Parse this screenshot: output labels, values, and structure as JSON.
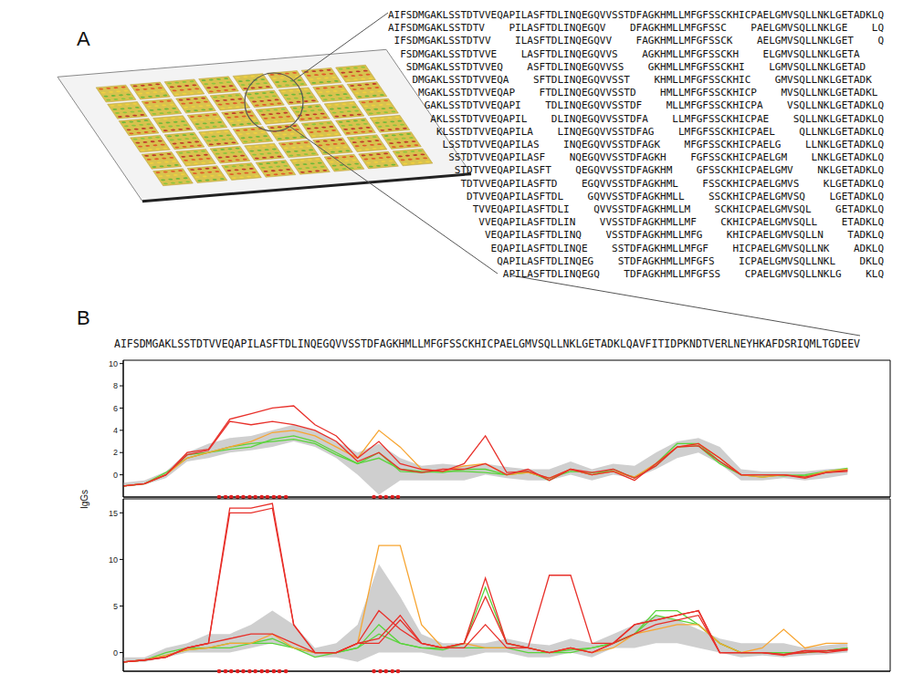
{
  "panel_a": {
    "label": "A",
    "rows": [
      [
        "AIFSDMGAKLSSTDTVVEQAPILASFTDLINQEGQVVSSTDFAGKHMLLMFGFSSCKHICPAELGMVSQLLNKLGETADKLQ"
      ],
      [
        "AIFSDMGAKLSSTDTV",
        "PILASFTDLINQEGQV",
        "DFAGKHMLLMFGFSSC",
        "PAELGMVSQLLNKLGE",
        "LQ"
      ],
      [
        "IFSDMGAKLSSTDTVV",
        "ILASFTDLINQEGQVV",
        "FAGKHMLLMFGFSSCK",
        "AELGMVSQLLNKLGET",
        "Q"
      ],
      [
        "FSDMGAKLSSTDTVVE",
        "LASFTDLINQEGQVVS",
        "AGKHMLLMFGFSSCKH",
        "ELGMVSQLLNKLGETA"
      ],
      [
        "SDMGAKLSSTDTVVEQ",
        "ASFTDLINQEGQVVSS",
        "GKHMLLMFGFSSCKHI",
        "LGMVSQLLNKLGETAD"
      ],
      [
        "DMGAKLSSTDTVVEQA",
        "SFTDLINQEGQVVSST",
        "KHMLLMFGFSSCKHIC",
        "GMVSQLLNKLGETADK"
      ],
      [
        "MGAKLSSTDTVVEQAP",
        "FTDLINQEGQVVSSTD",
        "HMLLMFGFSSCKHICP",
        "MVSQLLNKLGETADKL"
      ],
      [
        "GAKLSSTDTVVEQAPI",
        "TDLINQEGQVVSSTDF",
        "MLLMFGFSSCKHICPA",
        "VSQLLNKLGETADKLQ"
      ],
      [
        "AKLSSTDTVVEQAPIL",
        "DLINQEGQVVSSTDFA",
        "LLMFGFSSCKHICPAE",
        "SQLLNKLGETADKLQ"
      ],
      [
        "KLSSTDTVVEQAPILA",
        "LINQEGQVVSSTDFAG",
        "LMFGFSSCKHICPAEL",
        "QLLNKLGETADKLQ"
      ],
      [
        "LSSTDTVVEQAPILAS",
        "INQEGQVVSSTDFAGK",
        "MFGFSSCKHICPAELG",
        "LLNKLGETADKLQ"
      ],
      [
        "SSTDTVVEQAPILASF",
        "NQEGQVVSSTDFAGKH",
        "FGFSSCKHICPAELGM",
        "LNKLGETADKLQ"
      ],
      [
        "STDTVVEQAPILASFT",
        "QEGQVVSSTDFAGKHM",
        "GFSSCKHICPAELGMV",
        "NKLGETADKLQ"
      ],
      [
        "TDTVVEQAPILASFTD",
        "EGQVVSSTDFAGKHML",
        "FSSCKHICPAELGMVS",
        "KLGETADKLQ"
      ],
      [
        "DTVVEQAPILASFTDL",
        "GQVVSSTDFAGKHMLL",
        "SSCKHICPAELGMVSQ",
        "LGETADKLQ"
      ],
      [
        "TVVEQAPILASFTDLI",
        "QVVSSTDFAGKHMLLM",
        "SCKHICPAELGMVSQL",
        "GETADKLQ"
      ],
      [
        "VVEQAPILASFTDLIN",
        "VVSSTDFAGKHMLLMF",
        "CKHICPAELGMVSQLL",
        "ETADKLQ"
      ],
      [
        "VEQAPILASFTDLINQ",
        "VSSTDFAGKHMLLMFG",
        "KHICPAELGMVSQLLN",
        "TADKLQ"
      ],
      [
        "EQAPILASFTDLINQE",
        "SSTDFAGKHMLLMFGF",
        "HICPAELGMVSQLLNK",
        "ADKLQ"
      ],
      [
        "QAPILASFTDLINQEG",
        "STDFAGKHMLLMFGFS",
        "ICPAELGMVSQLLNKL",
        "DKLQ"
      ],
      [
        "APILASFTDLINQEGQ",
        "TDFAGKHMLLMFGFSS",
        "CPAELGMVSQLLNKLG",
        "KLQ"
      ]
    ]
  },
  "panel_b": {
    "label": "B",
    "sequence": "AIFSDMGAKLSSTDTVVEQAPILASFTDLINQEGQVVSSTDFAGKHMLLMFGFSSCKHICPAELGMVSQLLNKLGETADKLQAVFITIDPKNDTVERLNEYHKAFDSRIQMLTGDEEV",
    "y_label": "IgGs"
  },
  "chart_data": [
    {
      "type": "line",
      "tick_labels": "y",
      "x": [
        1,
        4,
        7,
        10,
        13,
        16,
        19,
        22,
        25,
        28,
        31,
        34,
        37,
        40,
        43,
        46,
        49,
        52,
        55,
        58,
        61,
        64,
        67,
        70,
        73,
        76,
        79,
        82,
        85,
        88,
        91,
        94,
        97,
        100,
        103
      ],
      "xlim": [
        1,
        109
      ],
      "ylim": [
        -2,
        10.3
      ],
      "yticks": [
        0,
        2,
        4,
        6,
        8,
        10
      ],
      "band": {
        "color": "#cfcfcf",
        "low": [
          -1.1,
          -0.9,
          -0.3,
          1.2,
          1.5,
          2,
          2.2,
          2.5,
          3,
          2.5,
          1.5,
          0,
          -1.8,
          -0.5,
          -0.5,
          -0.5,
          -0.5,
          0,
          -0.3,
          -0.5,
          -0.5,
          0,
          -0.5,
          0,
          -0.3,
          0.5,
          1.5,
          2,
          1,
          -0.5,
          -0.5,
          -0.3,
          -0.5,
          -0.3,
          0
        ],
        "high": [
          -0.7,
          -0.5,
          0.3,
          2,
          2.8,
          3.3,
          3.5,
          4,
          4.5,
          4,
          3,
          2,
          2.8,
          1.5,
          0.8,
          1,
          0.8,
          1,
          0.7,
          0.5,
          0.5,
          1.2,
          0.5,
          1,
          0.8,
          2,
          3,
          3.3,
          2.5,
          0.5,
          0.3,
          0.3,
          0.3,
          0.5,
          0.6
        ]
      },
      "series": [
        {
          "color": "#5ad43c",
          "values": [
            -1,
            -0.8,
            0,
            1.8,
            2,
            2.3,
            2.5,
            3.2,
            3.5,
            3,
            2,
            1,
            1.5,
            0.5,
            0.3,
            0.2,
            0.5,
            0.5,
            0,
            0.3,
            -0.5,
            0.5,
            0,
            0.5,
            -0.3,
            1,
            2.8,
            2.8,
            1.2,
            0,
            -0.2,
            0,
            -0.1,
            0.2,
            0.5
          ]
        },
        {
          "color": "#5ad43c",
          "values": [
            -1,
            -0.8,
            0.2,
            1.5,
            2,
            2.5,
            2.8,
            3,
            3.2,
            2.8,
            1.8,
            1,
            2,
            0.3,
            0.2,
            0.3,
            0.3,
            0.2,
            0,
            0.2,
            -0.3,
            0.3,
            0.2,
            0.3,
            -0.2,
            0.8,
            2.5,
            2.6,
            1,
            0,
            0,
            -0.1,
            0,
            0.3,
            0.6
          ]
        },
        {
          "color": "#f7a531",
          "values": [
            -1,
            -0.8,
            0,
            1.5,
            2,
            2.5,
            3,
            3.8,
            4,
            3.5,
            2.5,
            1.5,
            4,
            2.5,
            0.5,
            0.3,
            0.8,
            1,
            0,
            0.2,
            -0.3,
            0.5,
            0,
            0.3,
            -0.2,
            1,
            2.5,
            2.8,
            1.5,
            0,
            -0.2,
            0,
            -0.2,
            0.3,
            0.5
          ]
        },
        {
          "color": "#e8302a",
          "values": [
            -1,
            -0.8,
            0,
            1.8,
            2.2,
            4.8,
            4.5,
            4.8,
            4.5,
            4,
            3,
            1.2,
            2,
            0.5,
            0.2,
            0.5,
            0.5,
            1,
            0,
            0.5,
            -0.5,
            0.5,
            0.2,
            0.5,
            -0.3,
            0.8,
            2.5,
            2.6,
            1.2,
            0,
            0,
            0,
            -0.2,
            0.2,
            0.4
          ]
        },
        {
          "color": "#e8302a",
          "values": [
            -1,
            -0.8,
            0,
            2,
            2.3,
            5,
            5.5,
            6,
            6.2,
            4.5,
            3.5,
            1.5,
            3,
            1,
            0.5,
            0.3,
            1,
            3.5,
            0.2,
            0.3,
            -0.3,
            0.5,
            0,
            0.3,
            -0.5,
            1,
            2.5,
            2.8,
            1.5,
            0,
            0,
            0,
            -0.3,
            0.2,
            0.3
          ]
        }
      ],
      "highlight": {
        "color": "#e02020",
        "x": [
          14.5,
          15.4,
          16.2,
          17.1,
          17.9,
          18.8,
          19.6,
          20.5,
          21.3,
          22.2,
          23.0,
          23.9,
          36.3,
          37.2,
          38.0,
          38.9,
          39.7
        ]
      }
    },
    {
      "type": "line",
      "tick_labels": "y",
      "x": [
        1,
        4,
        7,
        10,
        13,
        16,
        19,
        22,
        25,
        28,
        31,
        34,
        37,
        40,
        43,
        46,
        49,
        52,
        55,
        58,
        61,
        64,
        67,
        70,
        73,
        76,
        79,
        82,
        85,
        88,
        91,
        94,
        97,
        100,
        103
      ],
      "xlim": [
        1,
        109
      ],
      "ylim": [
        -2,
        16.5
      ],
      "yticks": [
        0,
        5,
        10,
        15
      ],
      "band": {
        "color": "#cfcfcf",
        "low": [
          -1,
          -1,
          -0.5,
          0,
          0,
          0,
          0.5,
          1,
          0.5,
          -0.5,
          -0.5,
          -1,
          0,
          0,
          0,
          -0.5,
          -0.5,
          0,
          0,
          -0.5,
          -0.5,
          0,
          -0.5,
          0.5,
          0.5,
          1,
          1,
          0.5,
          0,
          -0.5,
          -0.3,
          -0.5,
          -0.3,
          -0.2,
          0
        ],
        "high": [
          -0.5,
          -0.5,
          0.5,
          1,
          2,
          2,
          3,
          4.5,
          3,
          0.5,
          1,
          3,
          9.5,
          6,
          2,
          1,
          1,
          1,
          1.5,
          1,
          0.8,
          1.5,
          1,
          2,
          3,
          4,
          3.5,
          2.5,
          1.5,
          1,
          1,
          1,
          0.5,
          0.8,
          1
        ]
      },
      "series": [
        {
          "color": "#5ad43c",
          "values": [
            -1,
            -0.8,
            -0.3,
            0.3,
            0.5,
            0.5,
            1,
            1,
            0.5,
            0,
            0,
            0.5,
            2,
            1,
            0.5,
            0.5,
            0.5,
            0.5,
            0.5,
            0,
            0,
            0,
            0.5,
            1,
            2,
            4.5,
            4.5,
            3,
            1,
            0,
            0,
            0,
            0,
            0.2,
            0.5
          ]
        },
        {
          "color": "#5ad43c",
          "values": [
            -1,
            -0.8,
            0,
            0.5,
            0.5,
            1,
            1,
            1.5,
            0.5,
            -0.5,
            0,
            0.5,
            3,
            1,
            0.5,
            0.3,
            1,
            7,
            1,
            0.5,
            0,
            0.3,
            0.5,
            1,
            2,
            4,
            3.5,
            3,
            1,
            0,
            0,
            0,
            0,
            0.2,
            0.5
          ]
        },
        {
          "color": "#f7a531",
          "values": [
            -1,
            -0.8,
            -0.3,
            0.3,
            0.5,
            1,
            1,
            2,
            0.5,
            0,
            0,
            1,
            11.5,
            11.5,
            3,
            0.5,
            1,
            0.5,
            0.5,
            0.5,
            0,
            0.5,
            0,
            0.5,
            2,
            2.5,
            3,
            3,
            1,
            0,
            0.5,
            2.5,
            0.5,
            1,
            1
          ]
        },
        {
          "color": "#e8302a",
          "values": [
            -1,
            -0.8,
            -0.5,
            0.5,
            1,
            1.5,
            2,
            2,
            1,
            0,
            0,
            1,
            4.5,
            2.5,
            1,
            0.5,
            0.5,
            3,
            0.5,
            0.5,
            0,
            0.5,
            0,
            1,
            2,
            3,
            3.5,
            4,
            0,
            0,
            0,
            -0.2,
            0,
            0.2,
            0.3
          ]
        },
        {
          "color": "#e8302a",
          "values": [
            -1,
            -0.8,
            -0.5,
            0.5,
            1,
            15,
            15,
            15.5,
            3,
            0,
            0,
            1,
            1.5,
            4,
            1,
            0.5,
            1,
            6,
            1,
            0.5,
            0,
            0.5,
            0,
            1,
            3,
            3.5,
            4,
            4.5,
            0,
            0,
            0,
            -0.2,
            0.2,
            0.2,
            0.4
          ]
        },
        {
          "color": "#e8302a",
          "values": [
            -1,
            -0.8,
            -0.5,
            0.5,
            1,
            15.5,
            15.5,
            16,
            3,
            0,
            0,
            1,
            1,
            3.5,
            1,
            0.5,
            1,
            8,
            1,
            0.5,
            8.3,
            8.3,
            1,
            1,
            3,
            3.5,
            4,
            4.5,
            0,
            0,
            0,
            -0.3,
            0.2,
            0,
            0.3
          ]
        }
      ],
      "highlight": {
        "color": "#e02020",
        "x": [
          14.5,
          15.4,
          16.2,
          17.1,
          17.9,
          18.8,
          19.6,
          20.5,
          21.3,
          22.2,
          23.0,
          23.9,
          36.3,
          37.2,
          38.0,
          38.9,
          39.7
        ]
      }
    }
  ]
}
